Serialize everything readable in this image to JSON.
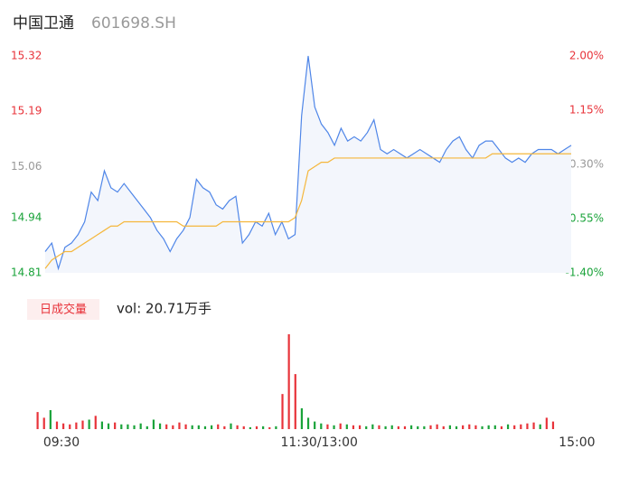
{
  "header": {
    "name": "中国卫通",
    "code": "601698.SH"
  },
  "chart_data": [
    {
      "type": "line",
      "ylim": [
        14.81,
        15.32
      ],
      "yticks": [
        15.32,
        15.19,
        15.06,
        14.94,
        14.81
      ],
      "y2lim": [
        -1.4,
        2
      ],
      "y2ticks": [
        {
          "value": 2,
          "label": "2.00%"
        },
        {
          "value": 1.15,
          "label": "1.15%"
        },
        {
          "value": 0.3,
          "label": "0.30%"
        },
        {
          "value": -0.55,
          "label": "-0.55%"
        },
        {
          "value": -1.4,
          "label": "-1.40%"
        }
      ],
      "area": true,
      "series": [
        {
          "color": "#4f86e8",
          "values": [
            14.86,
            14.88,
            14.82,
            14.87,
            14.88,
            14.9,
            14.93,
            15.0,
            14.98,
            15.05,
            15.01,
            15.0,
            15.02,
            15.0,
            14.98,
            14.96,
            14.94,
            14.91,
            14.89,
            14.86,
            14.89,
            14.91,
            14.94,
            15.03,
            15.01,
            15.0,
            14.97,
            14.96,
            14.98,
            14.99,
            14.88,
            14.9,
            14.93,
            14.92,
            14.95,
            14.9,
            14.93,
            14.89,
            14.9,
            15.18,
            15.32,
            15.2,
            15.16,
            15.14,
            15.11,
            15.15,
            15.12,
            15.13,
            15.12,
            15.14,
            15.17,
            15.1,
            15.09,
            15.1,
            15.09,
            15.08,
            15.09,
            15.1,
            15.09,
            15.08,
            15.07,
            15.1,
            15.12,
            15.13,
            15.1,
            15.08,
            15.11,
            15.12,
            15.12,
            15.1,
            15.08,
            15.07,
            15.08,
            15.07,
            15.09,
            15.1,
            15.1,
            15.1,
            15.09,
            15.1,
            15.11
          ]
        },
        {
          "color": "#f5b73b",
          "values": [
            14.82,
            14.84,
            14.85,
            14.86,
            14.86,
            14.87,
            14.88,
            14.89,
            14.9,
            14.91,
            14.92,
            14.92,
            14.93,
            14.93,
            14.93,
            14.93,
            14.93,
            14.93,
            14.93,
            14.93,
            14.93,
            14.92,
            14.92,
            14.92,
            14.92,
            14.92,
            14.92,
            14.93,
            14.93,
            14.93,
            14.93,
            14.93,
            14.93,
            14.93,
            14.93,
            14.93,
            14.93,
            14.93,
            14.94,
            14.98,
            15.05,
            15.06,
            15.07,
            15.07,
            15.08,
            15.08,
            15.08,
            15.08,
            15.08,
            15.08,
            15.08,
            15.08,
            15.08,
            15.08,
            15.08,
            15.08,
            15.08,
            15.08,
            15.08,
            15.08,
            15.08,
            15.08,
            15.08,
            15.08,
            15.08,
            15.08,
            15.08,
            15.08,
            15.09,
            15.09,
            15.09,
            15.09,
            15.09,
            15.09,
            15.09,
            15.09,
            15.09,
            15.09,
            15.09,
            15.09,
            15.09
          ]
        }
      ]
    },
    {
      "type": "bar",
      "legend_label": "日成交量",
      "volume_label": "vol: 20.71万手",
      "up_color": "#e8333a",
      "down_color": "#1aa33a",
      "ylim": [
        0,
        100
      ],
      "categories": [
        "09:30",
        null,
        null,
        null,
        null,
        null,
        null,
        null,
        null,
        null,
        null,
        null,
        null,
        null,
        null,
        null,
        null,
        null,
        null,
        null,
        null,
        null,
        null,
        null,
        null,
        null,
        null,
        null,
        null,
        null,
        null,
        null,
        null,
        null,
        null,
        null,
        null,
        null,
        null,
        null,
        "11:30/13:00",
        null,
        null,
        null,
        null,
        null,
        null,
        null,
        null,
        null,
        null,
        null,
        null,
        null,
        null,
        null,
        null,
        null,
        null,
        null,
        null,
        null,
        null,
        null,
        null,
        null,
        null,
        null,
        null,
        null,
        null,
        null,
        null,
        null,
        null,
        null,
        null,
        null,
        null,
        null,
        "15:00"
      ],
      "values": [
        18,
        12,
        20,
        8,
        6,
        5,
        7,
        9,
        10,
        14,
        8,
        6,
        7,
        5,
        5,
        4,
        6,
        3,
        10,
        6,
        5,
        4,
        7,
        5,
        4,
        4,
        3,
        4,
        5,
        3,
        6,
        4,
        3,
        2,
        3,
        3,
        2,
        3,
        37,
        100,
        58,
        22,
        12,
        8,
        6,
        5,
        4,
        6,
        5,
        4,
        4,
        3,
        5,
        4,
        3,
        4,
        3,
        3,
        4,
        3,
        3,
        4,
        5,
        3,
        4,
        3,
        4,
        5,
        4,
        3,
        4,
        4,
        3,
        5,
        4,
        5,
        6,
        7,
        5,
        12,
        8
      ]
    }
  ]
}
